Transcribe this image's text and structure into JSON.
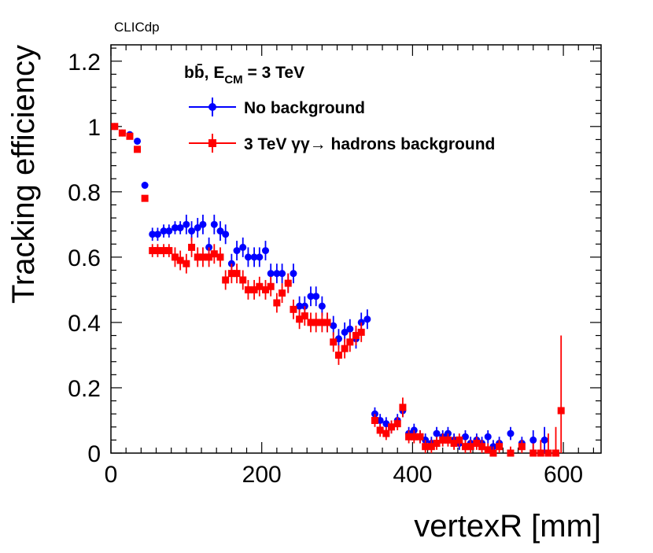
{
  "chart_data": {
    "type": "scatter",
    "label": "CLICdp",
    "process_label": {
      "main": "bb̄, E",
      "subscript": "CM",
      "suffix": " =  3 TeV"
    },
    "xlabel": "vertexR [mm]",
    "ylabel": "Tracking efficiency",
    "xlim": [
      0,
      650
    ],
    "ylim": [
      0,
      1.25
    ],
    "x_ticks": [
      0,
      200,
      400,
      600
    ],
    "y_ticks": [
      0,
      0.2,
      0.4,
      0.6,
      0.8,
      1,
      1.2
    ],
    "y_tick_labels": [
      "0",
      "0.2",
      "0.4",
      "0.6",
      "0.8",
      "1",
      "1.2"
    ],
    "legend_position": "top-right",
    "grid": false,
    "series": [
      {
        "name": "No background",
        "color": "#0000ff",
        "marker": "circle",
        "points": [
          [
            5,
            1.0,
            0.01
          ],
          [
            15,
            0.98,
            0.01
          ],
          [
            25,
            0.975,
            0.01
          ],
          [
            35,
            0.955,
            0.01
          ],
          [
            45,
            0.82,
            0.01
          ],
          [
            55,
            0.67,
            0.02
          ],
          [
            62,
            0.67,
            0.02
          ],
          [
            70,
            0.68,
            0.02
          ],
          [
            77,
            0.68,
            0.02
          ],
          [
            85,
            0.69,
            0.02
          ],
          [
            92,
            0.69,
            0.02
          ],
          [
            100,
            0.7,
            0.03
          ],
          [
            107,
            0.68,
            0.03
          ],
          [
            115,
            0.69,
            0.03
          ],
          [
            122,
            0.7,
            0.03
          ],
          [
            130,
            0.63,
            0.03
          ],
          [
            137,
            0.7,
            0.03
          ],
          [
            145,
            0.68,
            0.03
          ],
          [
            152,
            0.67,
            0.03
          ],
          [
            160,
            0.58,
            0.03
          ],
          [
            167,
            0.62,
            0.03
          ],
          [
            175,
            0.63,
            0.03
          ],
          [
            182,
            0.6,
            0.03
          ],
          [
            190,
            0.6,
            0.03
          ],
          [
            197,
            0.6,
            0.03
          ],
          [
            205,
            0.62,
            0.03
          ],
          [
            212,
            0.55,
            0.03
          ],
          [
            220,
            0.55,
            0.03
          ],
          [
            227,
            0.55,
            0.03
          ],
          [
            235,
            0.52,
            0.03
          ],
          [
            242,
            0.55,
            0.03
          ],
          [
            250,
            0.45,
            0.03
          ],
          [
            257,
            0.45,
            0.03
          ],
          [
            265,
            0.48,
            0.03
          ],
          [
            272,
            0.48,
            0.03
          ],
          [
            280,
            0.45,
            0.03
          ],
          [
            287,
            0.4,
            0.03
          ],
          [
            295,
            0.39,
            0.03
          ],
          [
            302,
            0.35,
            0.03
          ],
          [
            310,
            0.37,
            0.03
          ],
          [
            317,
            0.38,
            0.03
          ],
          [
            325,
            0.35,
            0.03
          ],
          [
            332,
            0.4,
            0.03
          ],
          [
            340,
            0.41,
            0.03
          ],
          [
            350,
            0.12,
            0.02
          ],
          [
            357,
            0.1,
            0.02
          ],
          [
            365,
            0.09,
            0.02
          ],
          [
            372,
            0.08,
            0.02
          ],
          [
            380,
            0.1,
            0.02
          ],
          [
            387,
            0.13,
            0.02
          ],
          [
            395,
            0.06,
            0.02
          ],
          [
            402,
            0.07,
            0.02
          ],
          [
            410,
            0.05,
            0.02
          ],
          [
            417,
            0.04,
            0.02
          ],
          [
            425,
            0.03,
            0.02
          ],
          [
            432,
            0.06,
            0.02
          ],
          [
            440,
            0.05,
            0.02
          ],
          [
            447,
            0.06,
            0.02
          ],
          [
            455,
            0.04,
            0.02
          ],
          [
            462,
            0.03,
            0.02
          ],
          [
            470,
            0.05,
            0.02
          ],
          [
            477,
            0.03,
            0.02
          ],
          [
            485,
            0.04,
            0.02
          ],
          [
            492,
            0.03,
            0.02
          ],
          [
            500,
            0.05,
            0.02
          ],
          [
            507,
            0.02,
            0.02
          ],
          [
            515,
            0.03,
            0.02
          ],
          [
            530,
            0.06,
            0.02
          ],
          [
            545,
            0.03,
            0.02
          ],
          [
            560,
            0.04,
            0.03
          ],
          [
            575,
            0.04,
            0.04
          ]
        ]
      },
      {
        "name": "3 TeV  γγ→ hadrons background",
        "color": "#ff0000",
        "marker": "square",
        "points": [
          [
            5,
            1.0,
            0.01
          ],
          [
            15,
            0.98,
            0.01
          ],
          [
            25,
            0.97,
            0.01
          ],
          [
            35,
            0.93,
            0.01
          ],
          [
            45,
            0.78,
            0.01
          ],
          [
            55,
            0.62,
            0.02
          ],
          [
            62,
            0.62,
            0.02
          ],
          [
            70,
            0.62,
            0.02
          ],
          [
            77,
            0.62,
            0.02
          ],
          [
            85,
            0.6,
            0.03
          ],
          [
            92,
            0.59,
            0.03
          ],
          [
            100,
            0.58,
            0.03
          ],
          [
            107,
            0.63,
            0.03
          ],
          [
            115,
            0.6,
            0.03
          ],
          [
            122,
            0.6,
            0.03
          ],
          [
            130,
            0.6,
            0.03
          ],
          [
            137,
            0.61,
            0.03
          ],
          [
            145,
            0.6,
            0.03
          ],
          [
            152,
            0.53,
            0.03
          ],
          [
            160,
            0.55,
            0.03
          ],
          [
            167,
            0.55,
            0.03
          ],
          [
            175,
            0.53,
            0.03
          ],
          [
            182,
            0.5,
            0.03
          ],
          [
            190,
            0.5,
            0.03
          ],
          [
            197,
            0.51,
            0.03
          ],
          [
            205,
            0.5,
            0.03
          ],
          [
            212,
            0.51,
            0.03
          ],
          [
            220,
            0.46,
            0.03
          ],
          [
            227,
            0.49,
            0.03
          ],
          [
            235,
            0.52,
            0.03
          ],
          [
            242,
            0.44,
            0.03
          ],
          [
            250,
            0.41,
            0.03
          ],
          [
            257,
            0.42,
            0.03
          ],
          [
            265,
            0.4,
            0.03
          ],
          [
            272,
            0.4,
            0.03
          ],
          [
            280,
            0.4,
            0.03
          ],
          [
            287,
            0.4,
            0.03
          ],
          [
            295,
            0.34,
            0.03
          ],
          [
            302,
            0.3,
            0.03
          ],
          [
            310,
            0.32,
            0.03
          ],
          [
            317,
            0.34,
            0.03
          ],
          [
            325,
            0.36,
            0.03
          ],
          [
            332,
            0.37,
            0.03
          ],
          [
            350,
            0.1,
            0.02
          ],
          [
            357,
            0.07,
            0.02
          ],
          [
            365,
            0.06,
            0.02
          ],
          [
            372,
            0.08,
            0.02
          ],
          [
            380,
            0.09,
            0.02
          ],
          [
            387,
            0.14,
            0.03
          ],
          [
            395,
            0.05,
            0.02
          ],
          [
            402,
            0.05,
            0.02
          ],
          [
            410,
            0.05,
            0.02
          ],
          [
            417,
            0.02,
            0.02
          ],
          [
            425,
            0.02,
            0.02
          ],
          [
            432,
            0.03,
            0.02
          ],
          [
            440,
            0.04,
            0.02
          ],
          [
            447,
            0.04,
            0.02
          ],
          [
            455,
            0.03,
            0.02
          ],
          [
            462,
            0.04,
            0.02
          ],
          [
            470,
            0.02,
            0.02
          ],
          [
            477,
            0.02,
            0.02
          ],
          [
            485,
            0.03,
            0.02
          ],
          [
            492,
            0.02,
            0.02
          ],
          [
            500,
            0.01,
            0.02
          ],
          [
            507,
            0.0,
            0.02
          ],
          [
            515,
            0.02,
            0.02
          ],
          [
            530,
            0.0,
            0.02
          ],
          [
            545,
            0.02,
            0.02
          ],
          [
            560,
            0.0,
            0.03
          ],
          [
            570,
            0.0,
            0.04
          ],
          [
            580,
            0.0,
            0.06
          ],
          [
            590,
            0.0,
            0.08
          ],
          [
            597,
            0.13,
            0.23
          ]
        ]
      }
    ]
  }
}
